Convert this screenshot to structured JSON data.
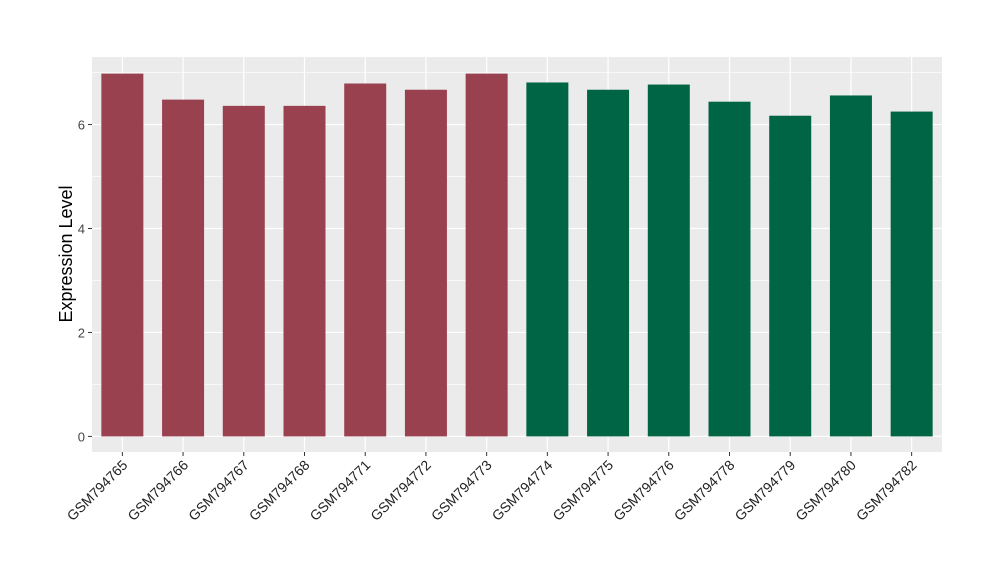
{
  "chart_data": {
    "type": "bar",
    "title": "",
    "xlabel": "",
    "ylabel": "Expression Level",
    "ylim": [
      -0.3,
      7.3
    ],
    "yticks": [
      0,
      2,
      4,
      6
    ],
    "grid": true,
    "legend": "none",
    "categories": [
      "GSM794765",
      "GSM794766",
      "GSM794767",
      "GSM794768",
      "GSM794771",
      "GSM794772",
      "GSM794773",
      "GSM794774",
      "GSM794775",
      "GSM794776",
      "GSM794778",
      "GSM794779",
      "GSM794780",
      "GSM794782"
    ],
    "values": [
      6.98,
      6.48,
      6.36,
      6.36,
      6.79,
      6.67,
      6.98,
      6.81,
      6.67,
      6.77,
      6.44,
      6.17,
      6.56,
      6.25
    ],
    "groups": [
      0,
      0,
      0,
      0,
      0,
      0,
      0,
      1,
      1,
      1,
      1,
      1,
      1,
      1
    ],
    "colors": [
      "#9a4150",
      "#006544"
    ]
  }
}
